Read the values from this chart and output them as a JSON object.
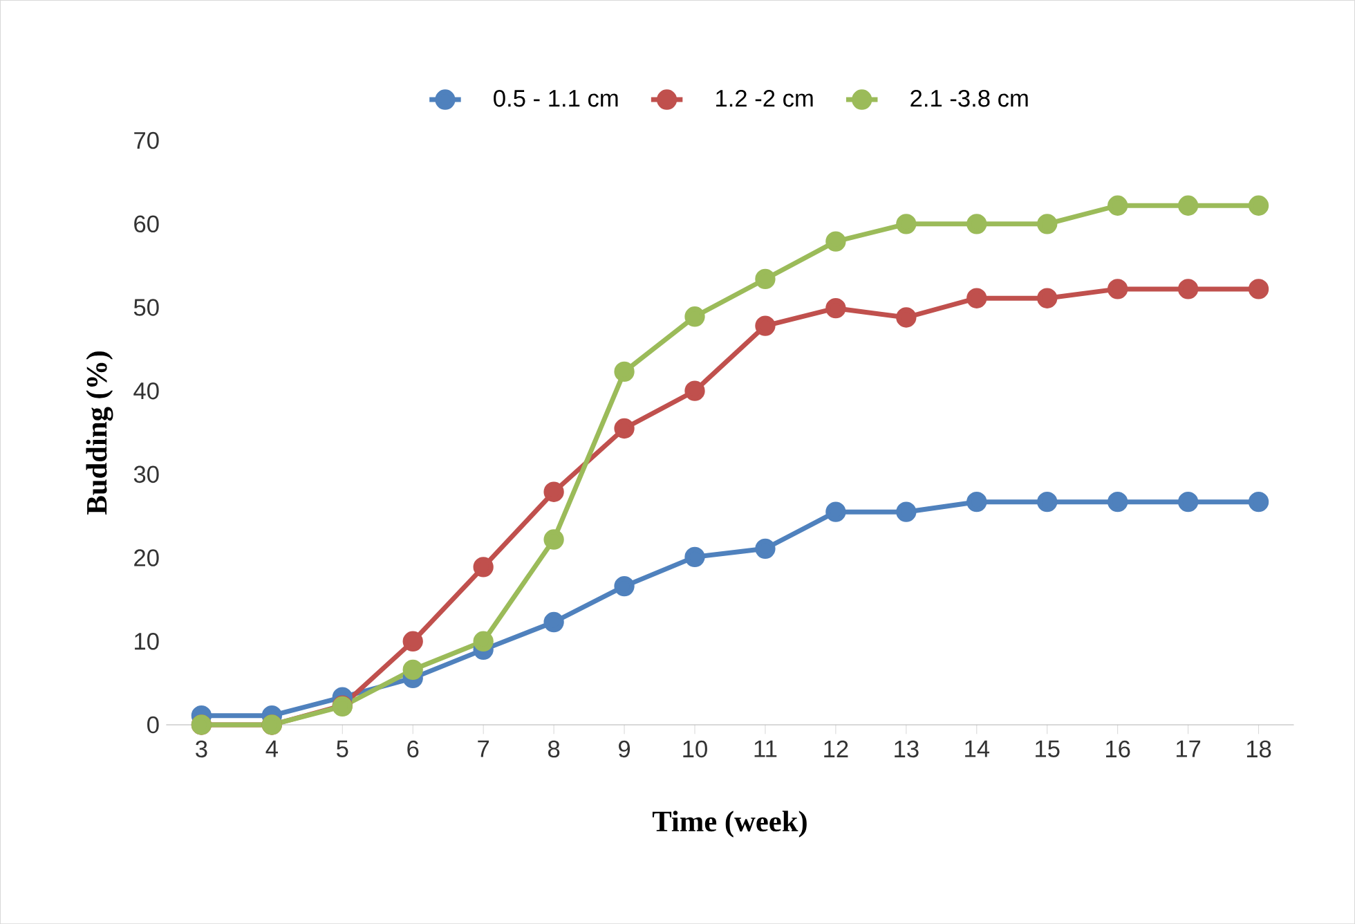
{
  "chart_data": {
    "type": "line",
    "xlabel": "Time (week)",
    "ylabel": "Budding (%)",
    "categories": [
      "3",
      "4",
      "5",
      "6",
      "7",
      "8",
      "9",
      "10",
      "11",
      "12",
      "13",
      "14",
      "15",
      "16",
      "17",
      "18"
    ],
    "series": [
      {
        "name": "0.5 - 1.1 cm",
        "color": "#4f81bd",
        "values": [
          1.1,
          1.1,
          3.3,
          5.6,
          9.0,
          12.3,
          16.6,
          20.1,
          21.1,
          25.5,
          25.5,
          26.7,
          26.7,
          26.7,
          26.7,
          26.7
        ]
      },
      {
        "name": "1.2 -2 cm",
        "color": "#c0504d",
        "values": [
          0,
          0,
          2.3,
          10.0,
          18.9,
          27.9,
          35.5,
          40.0,
          47.8,
          49.9,
          48.8,
          51.1,
          51.1,
          52.2,
          52.2,
          52.2
        ]
      },
      {
        "name": "2.1 -3.8 cm",
        "color": "#9bbb59",
        "values": [
          0,
          0,
          2.2,
          6.6,
          10.0,
          22.2,
          42.3,
          48.9,
          53.4,
          57.9,
          60.0,
          60.0,
          60.0,
          62.2,
          62.2,
          62.2
        ]
      }
    ],
    "ylim": [
      0,
      70
    ],
    "yticks": [
      0,
      10,
      20,
      30,
      40,
      50,
      60,
      70
    ],
    "legend": "top",
    "marker": "circle",
    "line_style": "solid"
  }
}
